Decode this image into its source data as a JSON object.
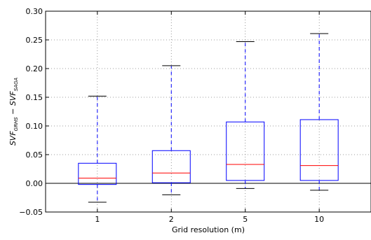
{
  "chart_data": {
    "type": "box",
    "xlabel": "Grid resolution (m)",
    "ylabel_parts": {
      "base": "SVF",
      "sub1": "GRHS",
      "minus": " − ",
      "sub2": "SAGA"
    },
    "categories": [
      "1",
      "2",
      "5",
      "10"
    ],
    "ylim": [
      -0.05,
      0.3
    ],
    "yticks": [
      -0.05,
      0.0,
      0.05,
      0.1,
      0.15,
      0.2,
      0.25,
      0.3
    ],
    "ytick_labels": [
      "−0.05",
      "0.00",
      "0.05",
      "0.10",
      "0.15",
      "0.20",
      "0.25",
      "0.30"
    ],
    "grid": true,
    "zero_line": true,
    "boxes": [
      {
        "category": "1",
        "whisker_low": -0.033,
        "q1": -0.002,
        "median": 0.009,
        "q3": 0.035,
        "whisker_high": 0.152
      },
      {
        "category": "2",
        "whisker_low": -0.02,
        "q1": 0.001,
        "median": 0.018,
        "q3": 0.057,
        "whisker_high": 0.205
      },
      {
        "category": "5",
        "whisker_low": -0.009,
        "q1": 0.005,
        "median": 0.033,
        "q3": 0.107,
        "whisker_high": 0.247
      },
      {
        "category": "10",
        "whisker_low": -0.012,
        "q1": 0.005,
        "median": 0.031,
        "q3": 0.111,
        "whisker_high": 0.261
      }
    ],
    "colors": {
      "box": "#0000ff",
      "median": "#ff0000",
      "whisker": "#0000ff",
      "cap": "#000000",
      "grid": "#7f7f7f",
      "axes": "#000000"
    }
  }
}
